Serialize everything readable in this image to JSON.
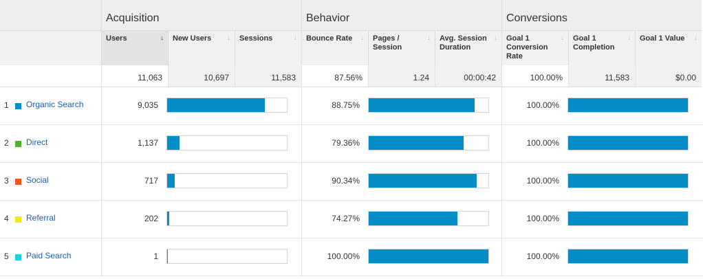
{
  "groups": {
    "acquisition": "Acquisition",
    "behavior": "Behavior",
    "conversions": "Conversions"
  },
  "columns": {
    "users": "Users",
    "new_users": "New Users",
    "sessions": "Sessions",
    "bounce_rate": "Bounce Rate",
    "pages_session": "Pages / Session",
    "avg_session": "Avg. Session Duration",
    "goal1_rate": "Goal 1 Conversion Rate",
    "goal1_completion": "Goal 1 Completion",
    "goal1_value": "Goal 1 Value"
  },
  "sort_icon": "↓",
  "totals": {
    "users": "11,063",
    "new_users": "10,697",
    "sessions": "11,583",
    "bounce_rate": "87.56%",
    "pages_session": "1.24",
    "avg_session": "00:00:42",
    "goal1_rate": "100.00%",
    "goal1_completion": "11,583",
    "goal1_value": "$0.00"
  },
  "bar_color": "#058dc7",
  "rows": [
    {
      "index": "1",
      "channel": "Organic Search",
      "color": "#058dc7",
      "users": "9,035",
      "users_share": 0.8167,
      "bounce_rate": "88.75%",
      "bounce_share": 0.8875,
      "goal1_rate": "100.00%",
      "goal1_share": 1.0
    },
    {
      "index": "2",
      "channel": "Direct",
      "color": "#50b432",
      "users": "1,137",
      "users_share": 0.1028,
      "bounce_rate": "79.36%",
      "bounce_share": 0.7936,
      "goal1_rate": "100.00%",
      "goal1_share": 1.0
    },
    {
      "index": "3",
      "channel": "Social",
      "color": "#ed561b",
      "users": "717",
      "users_share": 0.0648,
      "bounce_rate": "90.34%",
      "bounce_share": 0.9034,
      "goal1_rate": "100.00%",
      "goal1_share": 1.0
    },
    {
      "index": "4",
      "channel": "Referral",
      "color": "#edef00",
      "users": "202",
      "users_share": 0.0183,
      "bounce_rate": "74.27%",
      "bounce_share": 0.7427,
      "goal1_rate": "100.00%",
      "goal1_share": 1.0
    },
    {
      "index": "5",
      "channel": "Paid Search",
      "color": "#24cbe5",
      "users": "1",
      "users_share": 0.0001,
      "bounce_rate": "100.00%",
      "bounce_share": 1.0,
      "goal1_rate": "100.00%",
      "goal1_share": 1.0
    }
  ]
}
